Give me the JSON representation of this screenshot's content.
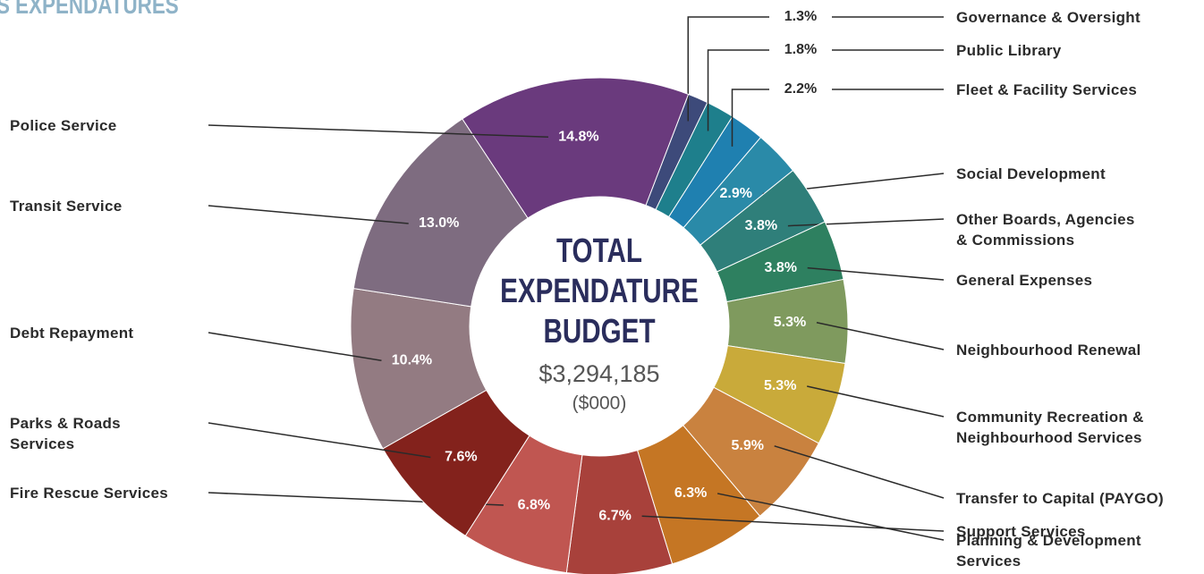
{
  "title": "S EXPENDATURES",
  "chart_data": {
    "type": "donut",
    "center_title": "TOTAL\nEXPENDATURE\nBUDGET",
    "center_value": "$3,294,185",
    "center_unit": "($000)",
    "categories": [
      "Governance & Oversight",
      "Public Library",
      "Fleet & Facility Services",
      "Social Development",
      "Other Boards, Agencies\n& Commissions",
      "General Expenses",
      "Neighbourhood Renewal",
      "Community Recreation &\nNeighbourhood Services",
      "Transfer to Capital (PAYGO)",
      "Planning & Development\nServices",
      "Support Services",
      "Fire Rescue Services",
      "Parks & Roads\nServices",
      "Debt Repayment",
      "Transit Service",
      "Police Service"
    ],
    "values": [
      1.3,
      1.8,
      2.2,
      2.9,
      3.8,
      3.8,
      5.3,
      5.3,
      5.9,
      6.3,
      6.7,
      6.8,
      7.6,
      10.4,
      13.0,
      14.8
    ],
    "value_labels": [
      "1.3%",
      "1.8%",
      "2.2%",
      "2.9%",
      "3.8%",
      "3.8%",
      "5.3%",
      "5.3%",
      "5.9%",
      "6.3%",
      "6.7%",
      "6.8%",
      "7.6%",
      "10.4%",
      "13.0%",
      "14.8%"
    ],
    "colors": [
      "#3d4a7a",
      "#1e7f8c",
      "#1f80b0",
      "#2a8aa8",
      "#2f7f7a",
      "#2e8060",
      "#7f9a5e",
      "#c9aa3a",
      "#c9823f",
      "#c57624",
      "#a8413b",
      "#c05651",
      "#83221c",
      "#937b82",
      "#7e6c80",
      "#6a3a7d"
    ]
  }
}
